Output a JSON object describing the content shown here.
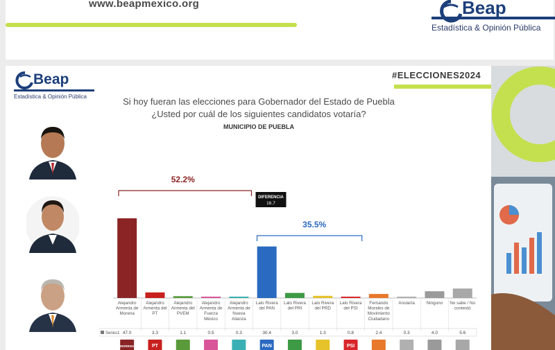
{
  "top": {
    "url": "www.beapmexico.org",
    "logo_text": "Beap",
    "tagline": "Estadística & Opinión Pública"
  },
  "slide": {
    "logo_text": "Beap",
    "tagline": "Estadística & Opinión Pública",
    "hashtag": "#ELECCIONES2024",
    "question_line1": "Si hoy fueran las elecciones para Gobernador del Estado de Puebla",
    "question_line2": "¿Usted por cuál de los siguientes candidatos votaría?",
    "subtitle": "MUNICIPIO DE PUEBLA"
  },
  "chart_data": {
    "type": "bar",
    "categories": [
      "Alejandro Armenta de Morena",
      "Alejandro Armenta del PT",
      "Alejandro Armenta del PVEM",
      "Alejandro Armenta de Fuerza México",
      "Alejandro Armenta de Nueva Alianza",
      "Lalo Rivera del PAN",
      "Lalo Rivera del PRI",
      "Lalo Rivera del PRD",
      "Lalo Rivera del PSI",
      "Fernando Morales de Movimiento Ciudadano",
      "Anularía",
      "Ninguno",
      "No sabe / No contestó"
    ],
    "series": [
      {
        "name": "Series1",
        "values": [
          47.0,
          3.3,
          1.1,
          0.5,
          0.3,
          30.4,
          3.0,
          1.3,
          0.8,
          2.4,
          0.3,
          4.0,
          5.6
        ],
        "labels": [
          "47.0",
          "3.3",
          "1.1",
          "0.5",
          "0.3",
          "30.4",
          "3.0",
          "1.3",
          "0.8",
          "2.4",
          "0.3",
          "4.0",
          "5.6"
        ],
        "colors": [
          "#8b2525",
          "#c8201e",
          "#5a9a3a",
          "#d9559a",
          "#3ab0b4",
          "#2a6ac0",
          "#3d9a45",
          "#e6c32a",
          "#d8262a",
          "#e8782a",
          "#b0b0b0",
          "#9a9a9a",
          "#a8a8a8"
        ]
      }
    ],
    "party_icons": [
      "MORENA",
      "PT",
      "",
      "",
      "",
      "PAN",
      "",
      "",
      "PSI",
      "",
      "",
      "",
      ""
    ],
    "ylim": [
      0,
      60
    ],
    "grid": false,
    "legend": "bottom-table",
    "annotations": [
      {
        "text": "52.2%",
        "group": "Alejandro Armenta"
      },
      {
        "text": "35.5%",
        "group": "Lalo Rivera"
      },
      {
        "text": "DIFERENCIA",
        "value": "16.7"
      }
    ]
  },
  "icons": {
    "top_logo": "beap-logo-icon",
    "slide_logo": "beap-logo-icon",
    "candidates": [
      "candidate-photo-armenta",
      "candidate-photo-rivera",
      "candidate-photo-morales"
    ]
  }
}
